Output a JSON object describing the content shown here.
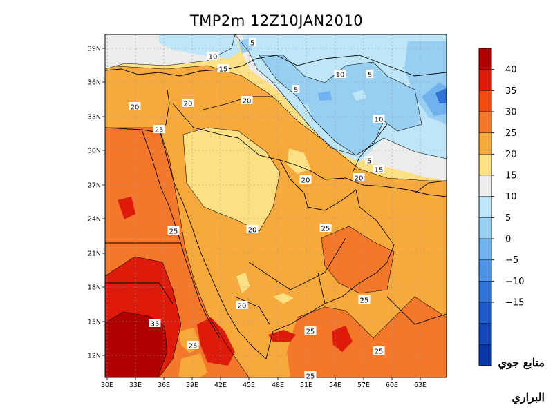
{
  "map": {
    "title": "TMP2m  12Z10JAN2010",
    "lon_ticks": [
      "30E",
      "33E",
      "36E",
      "39E",
      "42E",
      "45E",
      "48E",
      "51E",
      "54E",
      "57E",
      "60E",
      "63E"
    ],
    "lat_ticks": [
      "39N",
      "36N",
      "33N",
      "30N",
      "27N",
      "24N",
      "21N",
      "18N",
      "15N",
      "12N"
    ],
    "contour_labels": [
      "5",
      "10",
      "15",
      "10",
      "5",
      "5",
      "20",
      "20",
      "20",
      "10",
      "25",
      "5",
      "15",
      "20",
      "20",
      "20",
      "25",
      "25",
      "25",
      "20",
      "25",
      "35",
      "25",
      "25",
      "25"
    ]
  },
  "colorbar": {
    "ticks": [
      "40",
      "35",
      "30",
      "25",
      "20",
      "15",
      "10",
      "5",
      "0",
      "−5",
      "−10",
      "−15"
    ],
    "colors": [
      "#b00000",
      "#de1a0b",
      "#f24a10",
      "#f4772a",
      "#f8a93c",
      "#fde083",
      "#ececec",
      "#bfe6f8",
      "#96cff2",
      "#6fb2ee",
      "#4d93e6",
      "#2f73d9",
      "#1f5ac9",
      "#1347b8",
      "#0b36a6"
    ]
  },
  "credit": {
    "line1": "متابع جوي",
    "line2": "البراري"
  }
}
